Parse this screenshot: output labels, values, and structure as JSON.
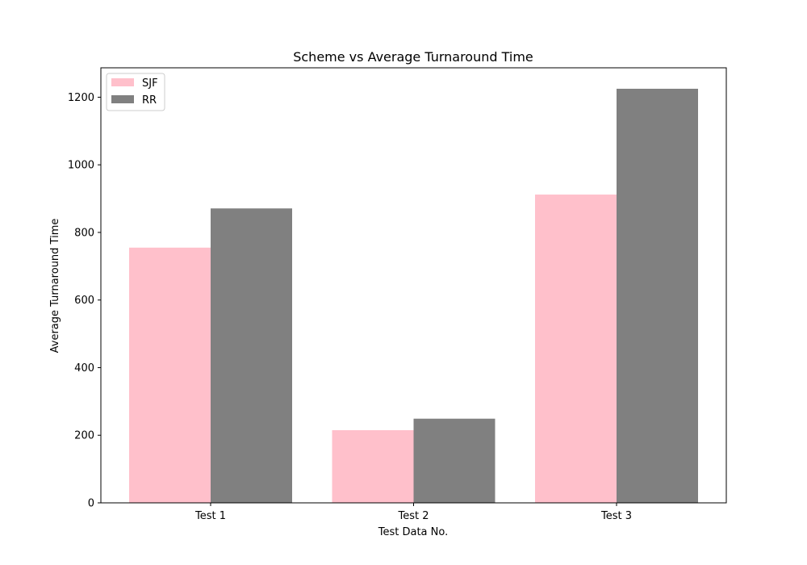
{
  "chart_data": {
    "type": "bar",
    "title": "Scheme vs Average Turnaround Time",
    "xlabel": "Test Data No.",
    "ylabel": "Average Turnaround Time",
    "categories": [
      "Test 1",
      "Test 2",
      "Test 3"
    ],
    "series": [
      {
        "name": "SJF",
        "color": "#ffc0cb",
        "values": [
          755,
          215,
          912
        ]
      },
      {
        "name": "RR",
        "color": "#808080",
        "values": [
          871,
          249,
          1225
        ]
      }
    ],
    "ylim": [
      0,
      1287
    ],
    "yticks": [
      0,
      200,
      400,
      600,
      800,
      1000,
      1200
    ],
    "ytick_labels": [
      "0",
      "200",
      "400",
      "600",
      "800",
      "1000",
      "1200"
    ],
    "grid": false,
    "legend": "top-left"
  }
}
